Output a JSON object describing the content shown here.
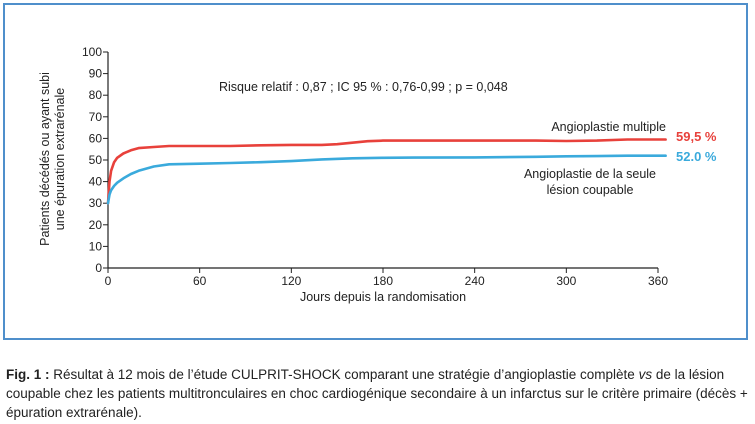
{
  "chart_data": {
    "type": "line",
    "xlabel": "Jours depuis la randomisation",
    "ylabel": [
      "Patients décédés ou ayant subi",
      "une épuration extrarénale"
    ],
    "xlim": [
      0,
      360
    ],
    "ylim": [
      0,
      100
    ],
    "xticks": [
      0,
      60,
      120,
      180,
      240,
      300,
      360
    ],
    "yticks": [
      0,
      10,
      20,
      30,
      40,
      50,
      60,
      70,
      80,
      90,
      100
    ],
    "annotation": "Risque relatif : 0,87 ; IC 95 % : 0,76-0,99 ; p = 0,048",
    "series": [
      {
        "name": "Angioplastie multiple",
        "label_lines": [
          "Angioplastie multiple"
        ],
        "color": "#e8413b",
        "end_value_label": "59,5 %",
        "x": [
          0,
          1,
          2,
          4,
          6,
          10,
          15,
          20,
          30,
          40,
          60,
          80,
          100,
          120,
          140,
          150,
          160,
          170,
          180,
          200,
          240,
          280,
          300,
          320,
          340,
          365
        ],
        "y": [
          30,
          40,
          45,
          49,
          51,
          53,
          54.5,
          55.5,
          56,
          56.5,
          56.5,
          56.5,
          56.8,
          57,
          57,
          57.3,
          58,
          58.7,
          59,
          59,
          59,
          59,
          58.8,
          59,
          59.5,
          59.5
        ]
      },
      {
        "name": "Angioplastie de la seule lésion coupable",
        "label_lines": [
          "Angioplastie de la seule",
          "lésion coupable"
        ],
        "color": "#3aaadc",
        "end_value_label": "52.0 %",
        "x": [
          0,
          1,
          2,
          4,
          6,
          10,
          15,
          20,
          30,
          40,
          60,
          80,
          100,
          120,
          140,
          160,
          180,
          200,
          240,
          280,
          300,
          320,
          340,
          365
        ],
        "y": [
          30,
          34,
          36,
          38,
          39.5,
          41.5,
          43.5,
          45,
          47,
          48,
          48.3,
          48.6,
          49,
          49.5,
          50.3,
          50.8,
          51,
          51.1,
          51.2,
          51.5,
          51.7,
          51.8,
          52,
          52
        ]
      }
    ]
  },
  "caption": {
    "label": "Fig. 1 :",
    "text_before_italic": " Résultat à 12 mois de l’étude CULPRIT-SHOCK comparant une stratégie d’angioplastie complète ",
    "italic": "vs",
    "text_after_italic": " de la lésion coupable chez les patients multitronculaires en choc cardiogénique secondaire à un infarctus sur le critère primaire (décès + épuration extrarénale)."
  }
}
